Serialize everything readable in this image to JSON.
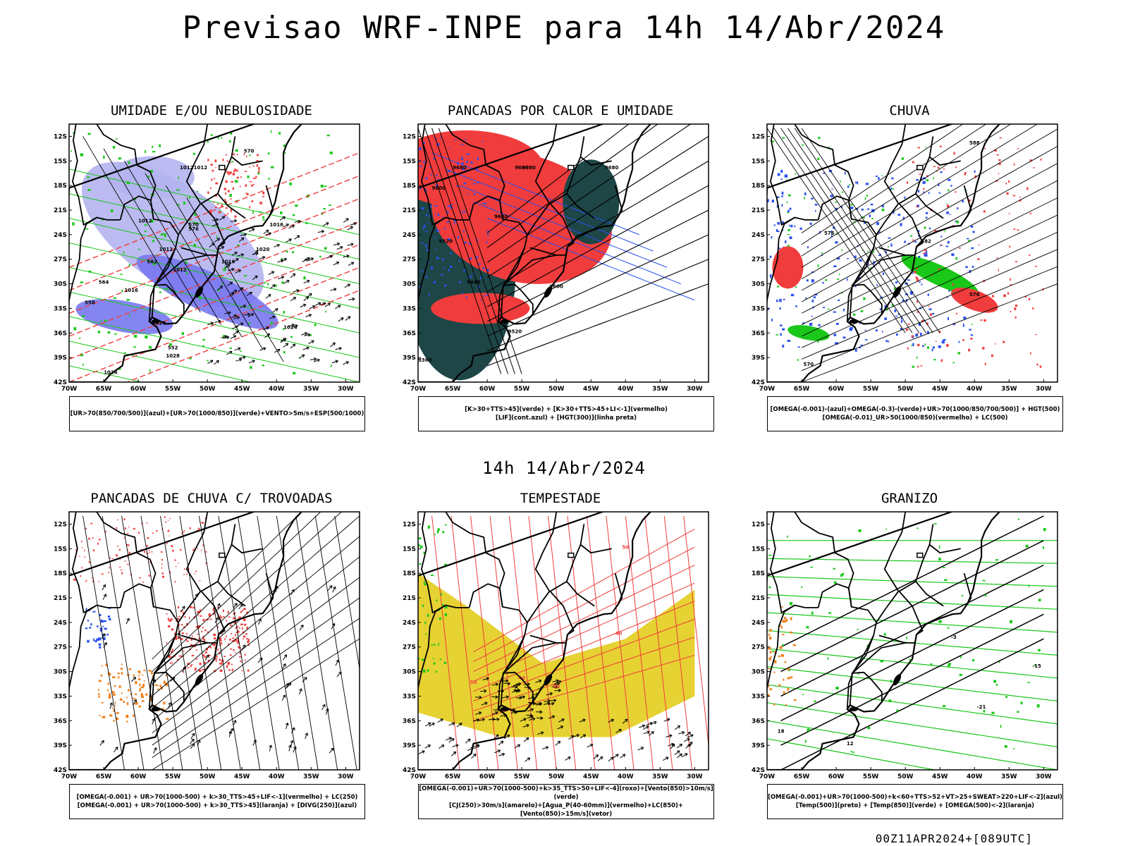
{
  "page": {
    "title": "Previsao WRF-INPE  para 14h 14/Abr/2024",
    "mid_title": "14h 14/Abr/2024",
    "footer": "00Z11APR2024+[089UTC]"
  },
  "axes": {
    "lat_labels": [
      "12S",
      "15S",
      "18S",
      "21S",
      "24S",
      "27S",
      "30S",
      "33S",
      "36S",
      "39S",
      "42S"
    ],
    "lon_labels": [
      "70W",
      "65W",
      "60W",
      "55W",
      "50W",
      "45W",
      "40W",
      "35W",
      "30W"
    ]
  },
  "colors": {
    "blue_light": "#b4b4f0",
    "blue_mid": "#7878f0",
    "blue": "#2850f0",
    "green": "#19c819",
    "red": "#f03c3c",
    "dark_teal": "#1e4646",
    "yellow": "#e6d232",
    "orange": "#f0821e",
    "contour": "#000000"
  },
  "panels": [
    {
      "title": "UMIDADE E/OU NEBULOSIDADE",
      "legend": [
        "[UR>70(850/700/500)](azul)+[UR>70(1000/850)](verde)+VENTO>5m/s+ESP(500/1000)"
      ],
      "contour_labels": [
        "1012",
        "1012",
        "1012",
        "1012",
        "1012",
        "1016",
        "1016",
        "1016",
        "1020",
        "1020",
        "1024",
        "1024",
        "1028",
        "570",
        "570",
        "576",
        "582",
        "564",
        "558",
        "552"
      ]
    },
    {
      "title": "PANCADAS POR CALOR E UMIDADE",
      "legend": [
        "[K>30+TTS>45](verde) + [K>30+TTS>45+LI<-1](vermelho)",
        "[LIF](cont.azul) + [HGT(300)](linha preta)"
      ],
      "contour_labels": [
        "9680",
        "9680",
        "9680",
        "9680",
        "9600",
        "9520",
        "9440",
        "9360",
        "9520",
        "9600",
        "9680"
      ]
    },
    {
      "title": "CHUVA",
      "legend": [
        "[OMEGA(-0.001)-(azul)+OMEGA(-0.3)-(verde)+UR>70(1000/850/700/500)] + HGT(500)",
        "[OMEGA(-0.01)_UR>50(1000/850)(vermelho) + LC(500)"
      ],
      "contour_labels": [
        "588",
        "582",
        "576",
        "576",
        "570"
      ]
    },
    {
      "title": "PANCADAS DE CHUVA C/ TROVOADAS",
      "legend": [
        "[OMEGA(-0.001) + UR>70(1000-500) + k>30_TTS>45+LIF<-1](vermelho) + LC(250)",
        "[OMEGA(-0.001) + UR>70(1000-500) + k>30_TTS>45](laranja) + [DIVG(250)](azul)"
      ],
      "contour_labels": []
    },
    {
      "title": "TEMPESTADE",
      "legend": [
        "[OMEGA(-0.001)+UR>70(1000-500)+k>35_TTS>50+LIF<-4](roxo)+[Vento(850)>10m/s](verde)",
        "[CJ(250)>30m/s](amarelo)+[Agua_P(40-60mm)](vermelho)+LC(850)+[Vento(850)>15m/s](vetor)"
      ],
      "contour_labels": [
        "50",
        "40",
        "50",
        "50",
        "40"
      ]
    },
    {
      "title": "GRANIZO",
      "legend": [
        "[OMEGA(-0.001)+UR>70(1000-500)+k<60+TTS>52+VT>25+SWEAT>220+LIF<-2](azul)",
        "[Temp(500)](preto) + [Temp(850)](verde) + [OMEGA(500)<-2](laranja)"
      ],
      "contour_labels": [
        "-15",
        "-21",
        "-3",
        "18",
        "12"
      ]
    }
  ]
}
